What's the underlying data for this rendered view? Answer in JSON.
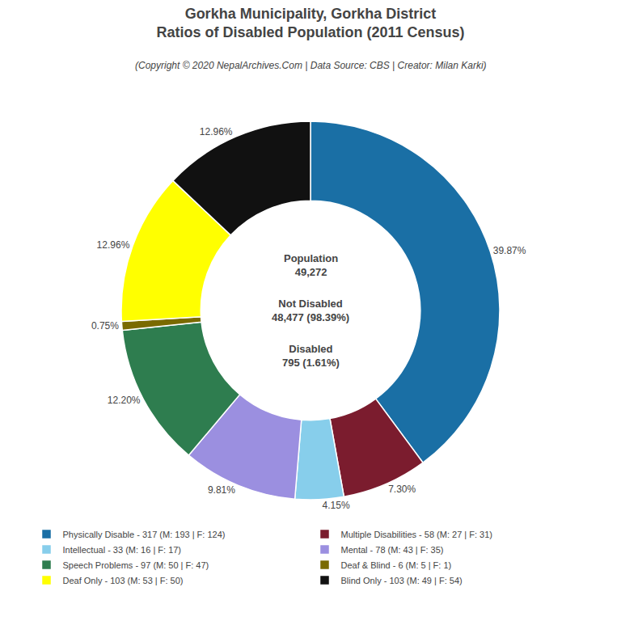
{
  "chart_data": {
    "type": "pie",
    "title": "Gorkha Municipality, Gorkha District\nRatios of Disabled Population (2011 Census)",
    "subtitle": "(Copyright © 2020 NepalArchives.Com | Data Source: CBS | Creator: Milan Karki)",
    "categories": [
      "Physically Disable - 317 (M: 193 | F: 124)",
      "Multiple Disabilities - 58 (M: 27 | F: 31)",
      "Intellectual - 33 (M: 16 | F: 17)",
      "Mental - 78 (M: 43 | F: 35)",
      "Speech Problems - 97 (M: 50 | F: 47)",
      "Deaf & Blind - 6 (M: 5 | F: 1)",
      "Deaf Only - 103 (M: 53 | F: 50)",
      "Blind Only - 103 (M: 49 | F: 54)"
    ],
    "values": [
      39.87,
      7.3,
      4.15,
      9.81,
      12.2,
      0.75,
      12.96,
      12.96
    ],
    "value_labels": [
      "39.87%",
      "7.30%",
      "4.15%",
      "9.81%",
      "12.20%",
      "0.75%",
      "12.96%",
      "12.96%"
    ],
    "colors": [
      "#1a6fa5",
      "#7b1c2e",
      "#87ceeb",
      "#9b8fe0",
      "#2e7d4f",
      "#7a6a00",
      "#ffff00",
      "#111111"
    ],
    "data_labels": true,
    "legend": "bottom",
    "annotations": [
      "Population\n49,272",
      "Not Disabled\n48,477 (98.39%)",
      "Disabled\n795 (1.61%)"
    ]
  }
}
